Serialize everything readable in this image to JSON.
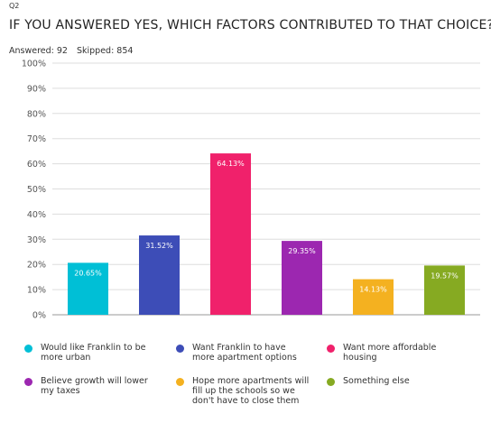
{
  "question_number": "Q2",
  "title": "IF YOU ANSWERED YES, WHICH FACTORS CONTRIBUTED TO THAT CHOICE?",
  "answered": "Answered: 92",
  "skipped": "Skipped: 854",
  "chart_data": {
    "type": "bar",
    "categories": [
      "Would like Franklin to be more urban",
      "Want Franklin to have more apartment options",
      "Want more affordable housing",
      "Believe growth will lower my taxes",
      "Hope more apartments will fill up the schools so we don't have to close them",
      "Something else"
    ],
    "values": [
      20.65,
      31.52,
      64.13,
      29.35,
      14.13,
      19.57
    ],
    "data_labels": [
      "20.65%",
      "31.52%",
      "64.13%",
      "29.35%",
      "14.13%",
      "19.57%"
    ],
    "colors": [
      "#00bfd6",
      "#3d4db7",
      "#f0216b",
      "#9c27b0",
      "#f4b120",
      "#86aa22"
    ],
    "y_ticks": [
      "0%",
      "10%",
      "20%",
      "30%",
      "40%",
      "50%",
      "60%",
      "70%",
      "80%",
      "90%",
      "100%"
    ],
    "ylim": [
      0,
      100
    ],
    "grid": true,
    "legend_position": "bottom"
  }
}
